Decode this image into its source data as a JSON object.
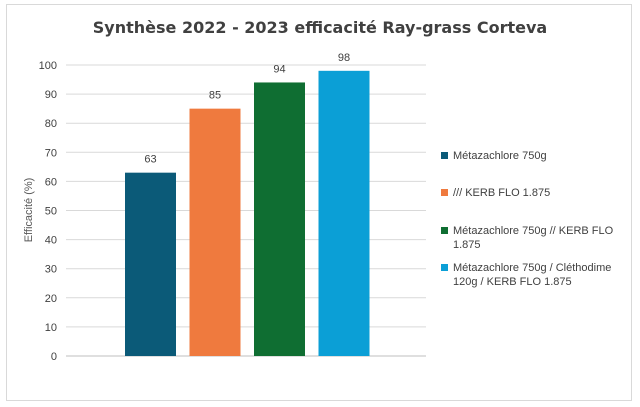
{
  "chart_data": {
    "type": "bar",
    "title": "Synthèse 2022  - 2023 efficacité Ray-grass Corteva",
    "ylabel": "Efficacité (%)",
    "xlabel": "",
    "ylim": [
      0,
      100
    ],
    "yticks": [
      0,
      10,
      20,
      30,
      40,
      50,
      60,
      70,
      80,
      90,
      100
    ],
    "grid": true,
    "legend_position": "right",
    "series": [
      {
        "name": "Métazachlore 750g",
        "value": 63,
        "color": "#0b5a78",
        "legend_lines": [
          "Métazachlore 750g"
        ]
      },
      {
        "name": "/// KERB FLO 1.875",
        "value": 85,
        "color": "#ef7a3e",
        "legend_lines": [
          "/// KERB FLO 1.875"
        ]
      },
      {
        "name": "Métazachlore 750g // KERB FLO 1.875",
        "value": 94,
        "color": "#0f6e32",
        "legend_lines": [
          "Métazachlore 750g // KERB FLO",
          "1.875"
        ]
      },
      {
        "name": "Métazachlore 750g / Cléthodime 120g / KERB FLO 1.875",
        "value": 98,
        "color": "#0b9fd6",
        "legend_lines": [
          "Métazachlore 750g / Cléthodime",
          "120g / KERB FLO 1.875"
        ]
      }
    ]
  }
}
